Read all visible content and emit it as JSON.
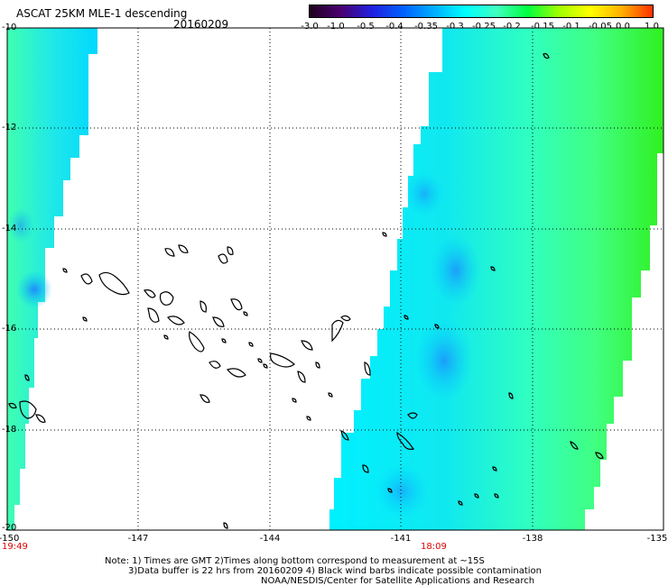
{
  "header": {
    "title": "ASCAT 25KM MLE-1 descending",
    "date": "20160209"
  },
  "colorbar": {
    "ticks": [
      "-3.0",
      "-1.0",
      "-0.5",
      "-0.4",
      "-0.35",
      "-0.3",
      "-0.25",
      "-0.2",
      "-0.15",
      "-0.1",
      "-0.05",
      "0.0",
      "1.0"
    ],
    "colors": [
      "#200020",
      "#4a0070",
      "#2020e0",
      "#0060ff",
      "#00b0ff",
      "#00ffff",
      "#40ffc0",
      "#00ff40",
      "#a0ff00",
      "#ffff00",
      "#ffb000",
      "#ff3000"
    ]
  },
  "map": {
    "lat_labels": [
      "-10",
      "-12",
      "-14",
      "-16",
      "-18",
      "-20"
    ],
    "lon_labels": [
      "-150",
      "-147",
      "-144",
      "-141",
      "-138",
      "-135"
    ],
    "lon_range": [
      -150,
      -135
    ],
    "lat_range": [
      -20,
      -10
    ],
    "grid": "dotted",
    "swath_times": [
      "19:49",
      "18:09"
    ]
  },
  "footer": {
    "note1": "Note: 1) Times are GMT 2)Times along bottom correspond to measurement at ~15S",
    "note2": "3)Data buffer is 22 hrs from 20160209 4) Black wind barbs indicate possible contamination",
    "credit": "NOAA/NESDIS/Center for Satellite Applications and Research"
  }
}
